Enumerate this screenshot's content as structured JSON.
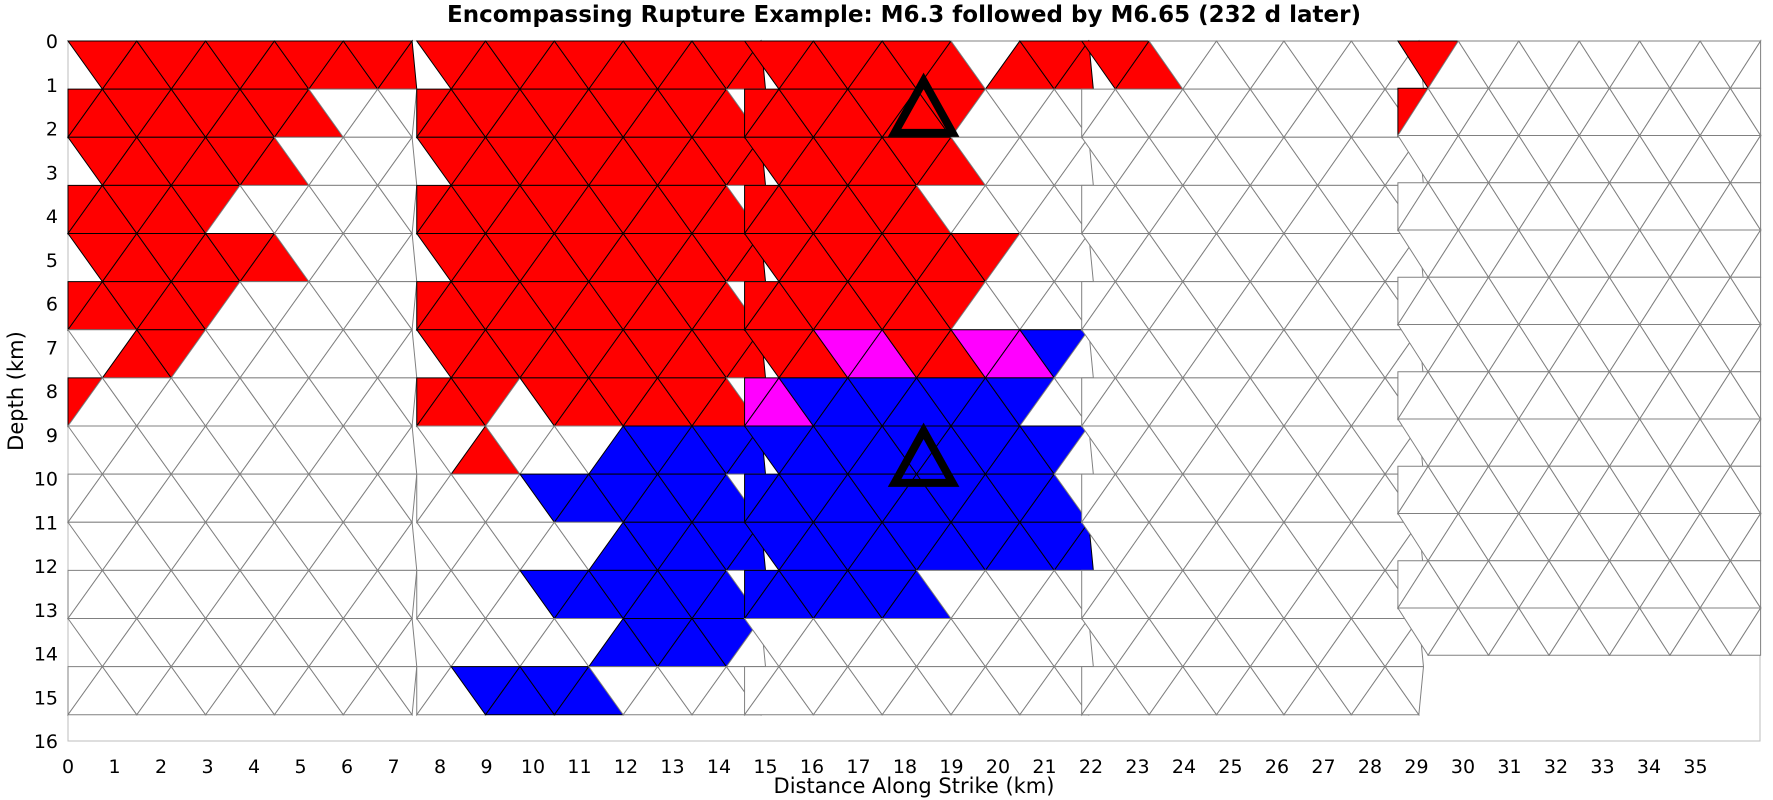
{
  "chart_data": {
    "type": "other",
    "title": "Encompassing Rupture Example: M6.3 followed by M6.65 (232 d later)",
    "xlabel": "Distance Along Strike (km)",
    "ylabel": "Depth (km)",
    "xlim": [
      0,
      36.4
    ],
    "ylim": [
      16,
      0
    ],
    "xticks": [
      "0",
      "1",
      "2",
      "3",
      "4",
      "5",
      "6",
      "7",
      "8",
      "9",
      "10",
      "11",
      "12",
      "13",
      "14",
      "15",
      "16",
      "17",
      "18",
      "19",
      "20",
      "21",
      "22",
      "23",
      "24",
      "25",
      "26",
      "27",
      "28",
      "29",
      "30",
      "31",
      "32",
      "33",
      "34",
      "35"
    ],
    "yticks": [
      "0",
      "1",
      "2",
      "3",
      "4",
      "5",
      "6",
      "7",
      "8",
      "9",
      "10",
      "11",
      "12",
      "13",
      "14",
      "15",
      "16"
    ],
    "grid": false,
    "colors": {
      "first_event": "#ff0000",
      "second_event": "#0000ff",
      "overlap": "#ff00ff",
      "unruptured": "#ffffff",
      "mesh_edge": "#808080",
      "ruptured_edge": "#000000",
      "hypocenter_marker": "#000000"
    },
    "fault_sections": [
      {
        "name": "section-1",
        "x_range": [
          0,
          7.4
        ],
        "depth_range": [
          0,
          15
        ]
      },
      {
        "name": "section-2",
        "x_range": [
          7.4,
          14.6
        ],
        "depth_range": [
          0,
          15
        ]
      },
      {
        "name": "section-3",
        "x_range": [
          14.6,
          21.8
        ],
        "depth_range": [
          0,
          15
        ]
      },
      {
        "name": "section-4",
        "x_range": [
          21.8,
          28.6
        ],
        "depth_range": [
          0,
          15
        ]
      },
      {
        "name": "section-5",
        "x_range": [
          28.6,
          36.4
        ],
        "depth_range": [
          0,
          14.7
        ]
      }
    ],
    "hypocenters": [
      {
        "event": "M6.3",
        "x": 18.4,
        "depth": 2.1
      },
      {
        "event": "M6.65",
        "x": 18.4,
        "depth": 10.1
      }
    ]
  }
}
